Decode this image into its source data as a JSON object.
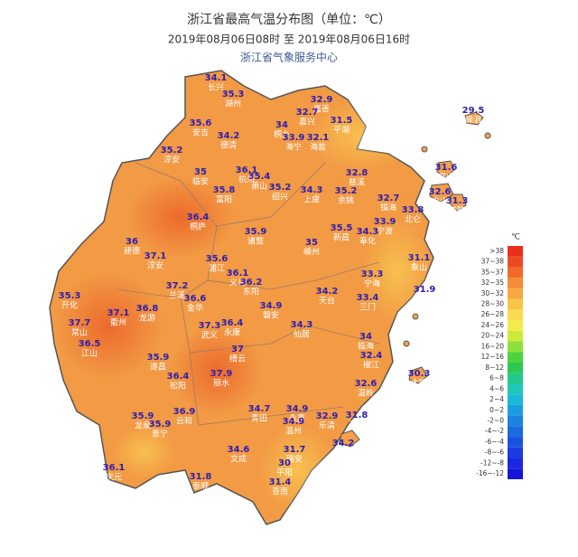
{
  "header": {
    "title": "浙江省最高气温分布图（单位：℃）",
    "subtitle": "2019年08月06日08时  至  2019年08月06日16时",
    "org": "浙江省气象服务中心"
  },
  "stations": [
    {
      "value": 34.1,
      "name": "长兴"
    },
    {
      "value": 35.3,
      "name": "湖州"
    },
    {
      "value": 32.9,
      "name": "嘉善"
    },
    {
      "value": 29.5,
      "name": "嵊泗"
    },
    {
      "value": 32.7,
      "name": "嘉兴"
    },
    {
      "value": 31.5,
      "name": "平湖"
    },
    {
      "value": 35.6,
      "name": "安吉"
    },
    {
      "value": 34,
      "name": "桐乡"
    },
    {
      "value": 34.2,
      "name": "德清"
    },
    {
      "value": 33.9,
      "name": "海宁"
    },
    {
      "value": 32.1,
      "name": "海盐"
    },
    {
      "value": 35.2,
      "name": "淳安"
    },
    {
      "value": 35,
      "name": "临安"
    },
    {
      "value": 36.1,
      "name": "杭州"
    },
    {
      "value": 35.4,
      "name": "萧山"
    },
    {
      "value": 32.8,
      "name": "慈溪"
    },
    {
      "value": 31.6,
      "name": "岱山"
    },
    {
      "value": 35.8,
      "name": "富阳"
    },
    {
      "value": 35.2,
      "name": "绍兴"
    },
    {
      "value": 34.3,
      "name": "上虞"
    },
    {
      "value": 35.2,
      "name": "余姚"
    },
    {
      "value": 32.7,
      "name": "镇海"
    },
    {
      "value": 32.6,
      "name": "舟山"
    },
    {
      "value": 31.3,
      "name": "普陀"
    },
    {
      "value": 33.8,
      "name": "北仑"
    },
    {
      "value": 36.4,
      "name": "桐庐"
    },
    {
      "value": 33.9,
      "name": "宁波"
    },
    {
      "value": 35.9,
      "name": "诸暨"
    },
    {
      "value": 34.3,
      "name": "奉化"
    },
    {
      "value": 35,
      "name": "嵊州"
    },
    {
      "value": 35.5,
      "name": "新昌"
    },
    {
      "value": 36,
      "name": "建德"
    },
    {
      "value": 37.1,
      "name": "淳安"
    },
    {
      "value": 35.6,
      "name": "浦江"
    },
    {
      "value": 31.1,
      "name": "象山"
    },
    {
      "value": 33.3,
      "name": "宁海"
    },
    {
      "value": 36.1,
      "name": "义乌"
    },
    {
      "value": 36.2,
      "name": "东阳"
    },
    {
      "value": 37.2,
      "name": "兰溪"
    },
    {
      "value": 35.3,
      "name": "开化"
    },
    {
      "value": 31.9,
      "name": "石浦"
    },
    {
      "value": 36.6,
      "name": "金华"
    },
    {
      "value": 34.2,
      "name": "天台"
    },
    {
      "value": 33.4,
      "name": "三门"
    },
    {
      "value": 34.9,
      "name": "磐安"
    },
    {
      "value": 37.1,
      "name": "衢州"
    },
    {
      "value": 36.8,
      "name": "龙游"
    },
    {
      "value": 37.7,
      "name": "常山"
    },
    {
      "value": 37.3,
      "name": "武义"
    },
    {
      "value": 36.4,
      "name": "永康"
    },
    {
      "value": 34.3,
      "name": "仙居"
    },
    {
      "value": 34,
      "name": "临海"
    },
    {
      "value": 36.5,
      "name": "江山"
    },
    {
      "value": 37,
      "name": "缙云"
    },
    {
      "value": 35.9,
      "name": "遂昌"
    },
    {
      "value": 32.4,
      "name": "椒江"
    },
    {
      "value": 36.4,
      "name": "松阳"
    },
    {
      "value": 37.9,
      "name": "丽水"
    },
    {
      "value": 30.3,
      "name": "大陈"
    },
    {
      "value": 32.6,
      "name": "温岭"
    },
    {
      "value": 34.7,
      "name": "青田"
    },
    {
      "value": 34.9,
      "name": "永嘉"
    },
    {
      "value": 36.9,
      "name": "云和"
    },
    {
      "value": 35.9,
      "name": "龙泉"
    },
    {
      "value": 35.9,
      "name": "景宁"
    },
    {
      "value": 34.9,
      "name": "温州"
    },
    {
      "value": 32.9,
      "name": "乐清"
    },
    {
      "value": 31.8,
      "name": "玉环"
    },
    {
      "value": 34.2,
      "name": "洞头"
    },
    {
      "value": 34.6,
      "name": "文成"
    },
    {
      "value": 31.7,
      "name": "瑞安"
    },
    {
      "value": 30,
      "name": "平阳"
    },
    {
      "value": 36.1,
      "name": "庆元"
    },
    {
      "value": 31.8,
      "name": "泰顺"
    },
    {
      "value": 31.4,
      "name": "苍南"
    }
  ],
  "legend": {
    "unit": "℃",
    "items": [
      {
        "label": ">38",
        "color": "#e8301c"
      },
      {
        "label": "37~38",
        "color": "#ee4a22"
      },
      {
        "label": "35~37",
        "color": "#f26a2a"
      },
      {
        "label": "32~35",
        "color": "#f58c34"
      },
      {
        "label": "30~32",
        "color": "#f7a840"
      },
      {
        "label": "28~30",
        "color": "#f9c44a"
      },
      {
        "label": "26~28",
        "color": "#fada50"
      },
      {
        "label": "24~26",
        "color": "#f4ec4c"
      },
      {
        "label": "20~24",
        "color": "#cdea3a"
      },
      {
        "label": "16~20",
        "color": "#8ee03a"
      },
      {
        "label": "12~16",
        "color": "#4cd43a"
      },
      {
        "label": "8~12",
        "color": "#2cc850"
      },
      {
        "label": "6~8",
        "color": "#22c88a"
      },
      {
        "label": "4~6",
        "color": "#1ec8b8"
      },
      {
        "label": "2~4",
        "color": "#1ab8d8"
      },
      {
        "label": "0~2",
        "color": "#1a9ee0"
      },
      {
        "label": "-2~0",
        "color": "#1a84e0"
      },
      {
        "label": "-4~-2",
        "color": "#1a6ae0"
      },
      {
        "label": "-6~-4",
        "color": "#1a52e0"
      },
      {
        "label": "-8~-6",
        "color": "#1a3ce0"
      },
      {
        "label": "-12~-8",
        "color": "#1a28e0"
      },
      {
        "label": "-16~-12",
        "color": "#1414d8"
      }
    ]
  }
}
